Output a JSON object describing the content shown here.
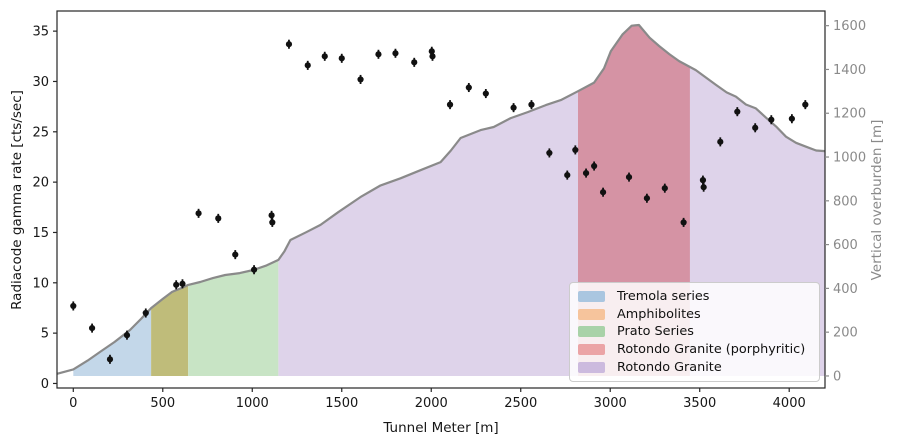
{
  "chart_data": {
    "type": "scatter",
    "title": "",
    "xlabel": "Tunnel Meter [m]",
    "ylabel_left": "Radiacode gamma rate [cts/sec]",
    "ylabel_right": "Vertical overburden [m]",
    "grid": false,
    "legend_position": "lower right",
    "xlim": [
      -91,
      4200
    ],
    "ylim_left": [
      -0.45,
      37.0
    ],
    "ylim_right": [
      -55,
      1667
    ],
    "xticks": [
      0,
      500,
      1000,
      1500,
      2000,
      2500,
      3000,
      3500,
      4000
    ],
    "yticks_left": [
      0,
      5,
      10,
      15,
      20,
      25,
      30,
      35
    ],
    "yticks_right": [
      0,
      200,
      400,
      600,
      800,
      1000,
      1200,
      1400,
      1600
    ],
    "axis_color": "#262626",
    "right_axis_text_color": "#8a8a8a",
    "scatter": {
      "name": "Radiacode gamma rate",
      "color": "#111111",
      "yerr": 0.45,
      "points": [
        [
          0,
          7.7
        ],
        [
          105,
          5.5
        ],
        [
          205,
          2.4
        ],
        [
          300,
          4.8
        ],
        [
          405,
          7.0
        ],
        [
          575,
          9.8
        ],
        [
          610,
          9.9
        ],
        [
          700,
          16.9
        ],
        [
          810,
          16.4
        ],
        [
          905,
          12.8
        ],
        [
          1010,
          11.3
        ],
        [
          1108,
          16.7
        ],
        [
          1112,
          16.0
        ],
        [
          1205,
          33.7
        ],
        [
          1310,
          31.6
        ],
        [
          1405,
          32.5
        ],
        [
          1500,
          32.3
        ],
        [
          1605,
          30.2
        ],
        [
          1705,
          32.7
        ],
        [
          1800,
          32.8
        ],
        [
          1905,
          31.9
        ],
        [
          2003,
          33.0
        ],
        [
          2007,
          32.5
        ],
        [
          2105,
          27.7
        ],
        [
          2210,
          29.4
        ],
        [
          2305,
          28.8
        ],
        [
          2460,
          27.4
        ],
        [
          2560,
          27.7
        ],
        [
          2660,
          22.9
        ],
        [
          2760,
          20.7
        ],
        [
          2805,
          23.2
        ],
        [
          2865,
          20.9
        ],
        [
          2910,
          21.6
        ],
        [
          2960,
          19.0
        ],
        [
          3105,
          20.5
        ],
        [
          3205,
          18.4
        ],
        [
          3305,
          19.4
        ],
        [
          3410,
          16.0
        ],
        [
          3518,
          20.2
        ],
        [
          3522,
          19.5
        ],
        [
          3615,
          24.0
        ],
        [
          3710,
          27.0
        ],
        [
          3810,
          25.4
        ],
        [
          3900,
          26.2
        ],
        [
          4015,
          26.3
        ],
        [
          4090,
          27.7
        ]
      ]
    },
    "overburden_profile": {
      "name": "Vertical overburden profile",
      "color": "#8a8a8a",
      "line_width": 2.2,
      "axis": "right",
      "points": [
        [
          -91,
          10
        ],
        [
          0,
          30
        ],
        [
          80,
          70
        ],
        [
          150,
          110
        ],
        [
          230,
          155
        ],
        [
          317,
          210
        ],
        [
          380,
          262
        ],
        [
          435,
          310
        ],
        [
          500,
          352
        ],
        [
          552,
          384
        ],
        [
          600,
          400
        ],
        [
          642,
          416
        ],
        [
          709,
          429
        ],
        [
          780,
          447
        ],
        [
          849,
          461
        ],
        [
          930,
          470
        ],
        [
          1006,
          484
        ],
        [
          1080,
          505
        ],
        [
          1146,
          530
        ],
        [
          1180,
          570
        ],
        [
          1213,
          621
        ],
        [
          1300,
          656
        ],
        [
          1381,
          690
        ],
        [
          1480,
          748
        ],
        [
          1604,
          817
        ],
        [
          1716,
          870
        ],
        [
          1828,
          903
        ],
        [
          1940,
          940
        ],
        [
          2052,
          977
        ],
        [
          2110,
          1030
        ],
        [
          2164,
          1087
        ],
        [
          2276,
          1123
        ],
        [
          2349,
          1137
        ],
        [
          2444,
          1178
        ],
        [
          2539,
          1205
        ],
        [
          2640,
          1237
        ],
        [
          2724,
          1260
        ],
        [
          2819,
          1300
        ],
        [
          2910,
          1340
        ],
        [
          2965,
          1405
        ],
        [
          3003,
          1483
        ],
        [
          3068,
          1559
        ],
        [
          3120,
          1600
        ],
        [
          3160,
          1603
        ],
        [
          3220,
          1545
        ],
        [
          3273,
          1507
        ],
        [
          3330,
          1470
        ],
        [
          3385,
          1438
        ],
        [
          3478,
          1397
        ],
        [
          3590,
          1330
        ],
        [
          3650,
          1295
        ],
        [
          3702,
          1276
        ],
        [
          3758,
          1240
        ],
        [
          3814,
          1222
        ],
        [
          3870,
          1180
        ],
        [
          3926,
          1140
        ],
        [
          3982,
          1093
        ],
        [
          4038,
          1065
        ],
        [
          4094,
          1047
        ],
        [
          4150,
          1030
        ],
        [
          4200,
          1027
        ]
      ]
    },
    "regions": [
      {
        "name": "Tremola series",
        "x0": 0,
        "x1": 435,
        "fill": "#c3d7e9"
      },
      {
        "name": "Amphibolites",
        "x0": 435,
        "x1": 642,
        "fill": "#bfbc7a"
      },
      {
        "name": "Prato Series",
        "x0": 642,
        "x1": 1146,
        "fill": "#c8e4c5"
      },
      {
        "name": "Rotondo Granite",
        "x0": 1146,
        "x1": 4200,
        "fill": "#ded3ea"
      },
      {
        "name": "Rotondo Granite (porphyritic)",
        "x0": 2820,
        "x1": 3445,
        "fill": "#d593a4"
      }
    ],
    "legend_entries": [
      {
        "label": "Tremola series",
        "color": "#aac6e0"
      },
      {
        "label": "Amphibolites",
        "color": "#f6c49c"
      },
      {
        "label": "Prato Series",
        "color": "#a9d2a8"
      },
      {
        "label": "Rotondo Granite (porphyritic)",
        "color": "#eba4a6"
      },
      {
        "label": "Rotondo Granite",
        "color": "#ccbade"
      }
    ]
  }
}
